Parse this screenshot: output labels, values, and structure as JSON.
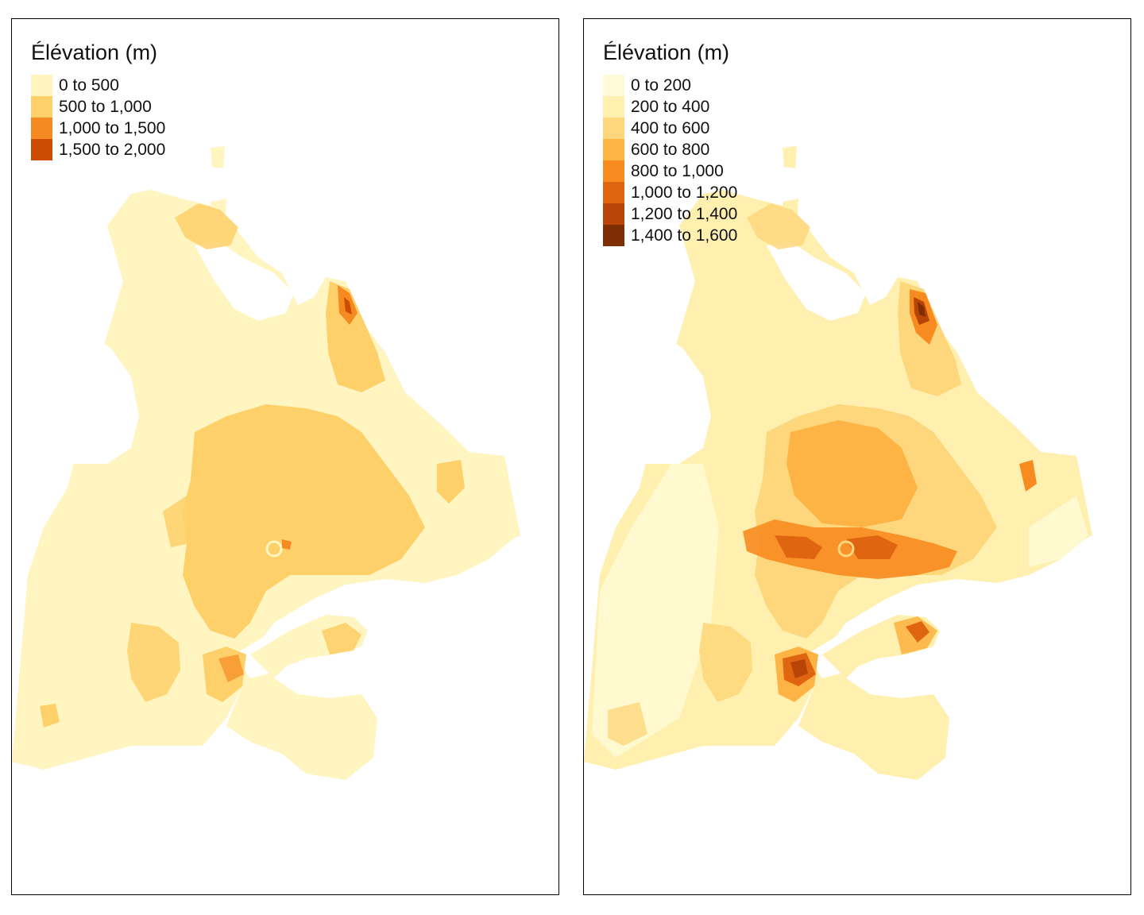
{
  "panels": [
    {
      "legend": {
        "title": "Élévation (m)",
        "items": [
          {
            "label": "0 to 500",
            "color": "#fff5c0"
          },
          {
            "label": "500 to 1,000",
            "color": "#fed06a"
          },
          {
            "label": "1,000 to 1,500",
            "color": "#f68a22"
          },
          {
            "label": "1,500 to 2,000",
            "color": "#cc4c02"
          }
        ]
      }
    },
    {
      "legend": {
        "title": "Élévation (m)",
        "items": [
          {
            "label": "0 to 200",
            "color": "#fffbd8"
          },
          {
            "label": "200 to 400",
            "color": "#fff0b0"
          },
          {
            "label": "400 to 600",
            "color": "#fed77c"
          },
          {
            "label": "600 to 800",
            "color": "#fdb444"
          },
          {
            "label": "800 to 1,000",
            "color": "#f88b20"
          },
          {
            "label": "1,000 to 1,200",
            "color": "#e06510"
          },
          {
            "label": "1,200 to 1,400",
            "color": "#b84408"
          },
          {
            "label": "1,400 to 1,600",
            "color": "#7e2d05"
          }
        ]
      }
    }
  ]
}
